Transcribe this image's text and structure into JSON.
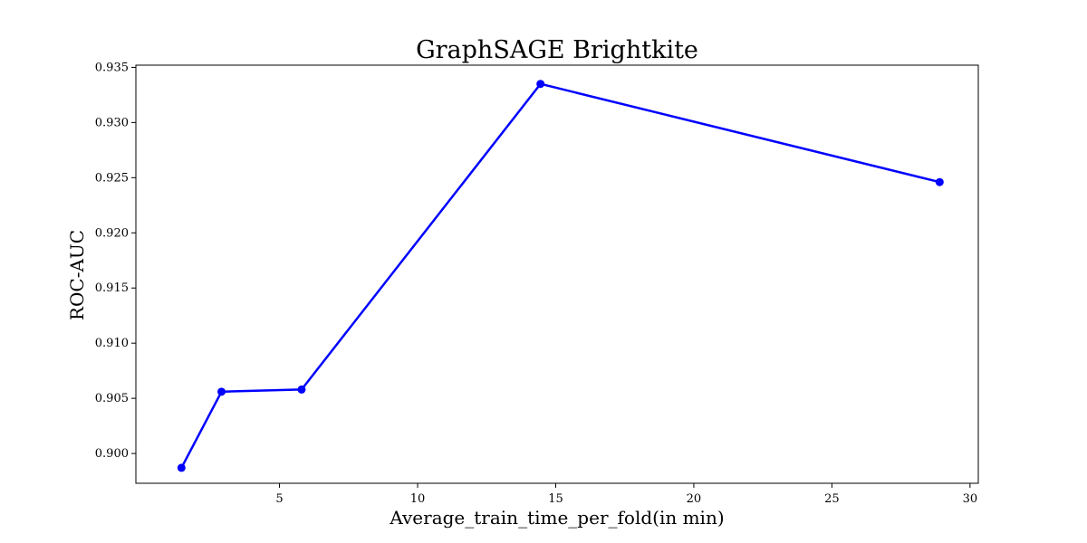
{
  "chart_data": {
    "type": "line",
    "title": "GraphSAGE Brightkite",
    "xlabel": "Average_train_time_per_fold(in min)",
    "ylabel": "ROC-AUC",
    "x": [
      1.45,
      2.9,
      5.8,
      14.45,
      28.9
    ],
    "y": [
      0.8987,
      0.9056,
      0.9058,
      0.9335,
      0.9246
    ],
    "xlim": [
      -0.2,
      30.3
    ],
    "ylim": [
      0.8973,
      0.9352
    ],
    "xticks": [
      5,
      10,
      15,
      20,
      25,
      30
    ],
    "xtick_labels": [
      "5",
      "10",
      "15",
      "20",
      "25",
      "30"
    ],
    "yticks": [
      0.9,
      0.905,
      0.91,
      0.915,
      0.92,
      0.925,
      0.93,
      0.935
    ],
    "ytick_labels": [
      "0.900",
      "0.905",
      "0.910",
      "0.915",
      "0.920",
      "0.925",
      "0.930",
      "0.935"
    ],
    "grid": false,
    "legend": "none",
    "line_color": "#0000ff",
    "marker": "circle"
  }
}
